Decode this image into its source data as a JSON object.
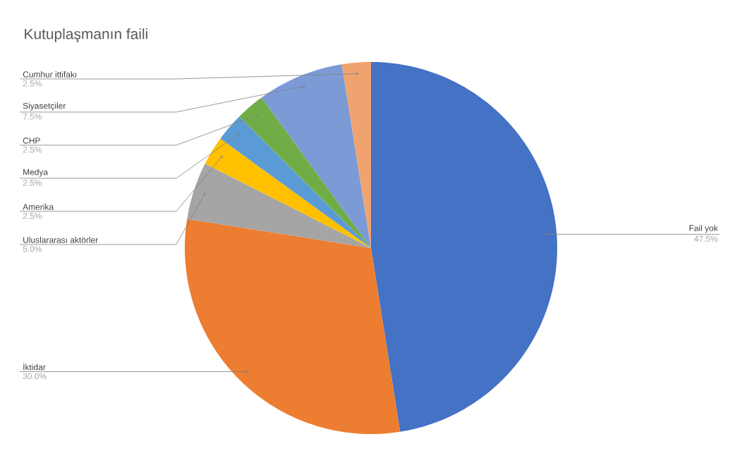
{
  "chart_data": {
    "type": "pie",
    "title": "Kutuplaşmanın faili",
    "categories": [
      "Fail yok",
      "İktidar",
      "Uluslararası aktörler",
      "Amerika",
      "Medya",
      "CHP",
      "Siyasetçiler",
      "Cumhur ittifakı"
    ],
    "values": [
      47.5,
      30.0,
      5.0,
      2.5,
      2.5,
      2.5,
      7.5,
      2.5
    ],
    "value_labels": [
      "47.5%",
      "30.0%",
      "5.0%",
      "2.5%",
      "2.5%",
      "2.5%",
      "7.5%",
      "2.5%"
    ],
    "colors": [
      "#4472c4",
      "#ed7d31",
      "#a5a5a5",
      "#ffc000",
      "#5b9bd5",
      "#70ad47",
      "#7c9bd6",
      "#f1a36f"
    ]
  }
}
